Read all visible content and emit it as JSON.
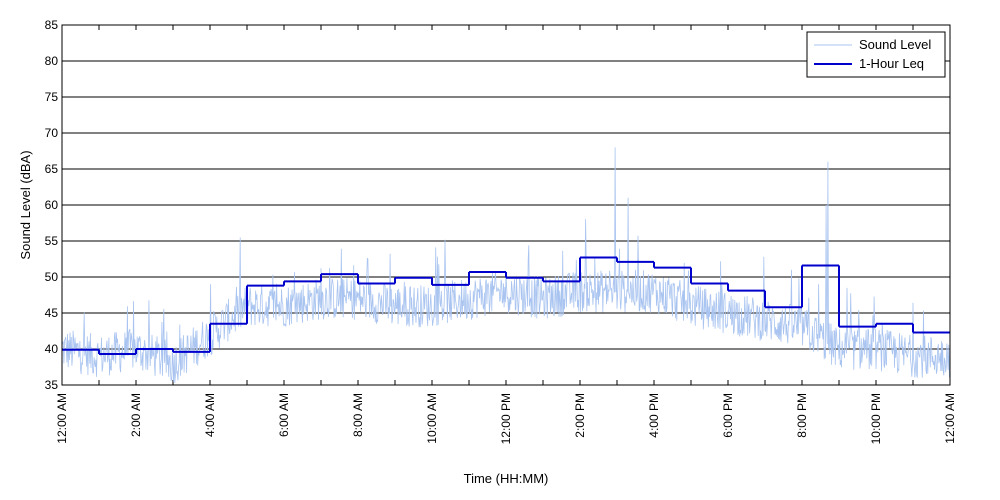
{
  "chart_data": {
    "type": "line",
    "title": "",
    "xlabel": "Time (HH:MM)",
    "ylabel": "Sound Level (dBA)",
    "xlim_hours": [
      0,
      24
    ],
    "ylim": [
      35,
      85
    ],
    "yticks": [
      35,
      40,
      45,
      50,
      55,
      60,
      65,
      70,
      75,
      80,
      85
    ],
    "xticks": [
      {
        "hour": 0,
        "label": "12:00 AM"
      },
      {
        "hour": 2,
        "label": "2:00 AM"
      },
      {
        "hour": 4,
        "label": "4:00 AM"
      },
      {
        "hour": 6,
        "label": "6:00 AM"
      },
      {
        "hour": 8,
        "label": "8:00 AM"
      },
      {
        "hour": 10,
        "label": "10:00 AM"
      },
      {
        "hour": 12,
        "label": "12:00 PM"
      },
      {
        "hour": 14,
        "label": "2:00 PM"
      },
      {
        "hour": 16,
        "label": "4:00 PM"
      },
      {
        "hour": 18,
        "label": "6:00 PM"
      },
      {
        "hour": 20,
        "label": "8:00 PM"
      },
      {
        "hour": 22,
        "label": "10:00 PM"
      },
      {
        "hour": 24,
        "label": "12:00 AM"
      }
    ],
    "grid": "horizontal",
    "legend_position": "top-right",
    "series": [
      {
        "name": "Sound Level",
        "color": "#a9c4f0",
        "style": "thin-line",
        "note_hourly_mean": [
          40,
          39,
          40,
          38,
          42,
          46,
          46,
          47,
          47,
          46,
          46,
          47,
          48,
          47,
          48,
          48,
          48,
          46,
          45,
          44,
          43,
          40,
          40,
          39
        ],
        "peaks": [
          {
            "hour": 14.95,
            "value": 68
          },
          {
            "hour": 20.7,
            "value": 66
          },
          {
            "hour": 20.65,
            "value": 60
          },
          {
            "hour": 15.3,
            "value": 61
          }
        ]
      },
      {
        "name": "1-Hour Leq",
        "color": "#0000cc",
        "style": "step",
        "hours": [
          0,
          1,
          2,
          3,
          4,
          5,
          6,
          7,
          8,
          9,
          10,
          11,
          12,
          13,
          14,
          15,
          16,
          17,
          18,
          19,
          20,
          21,
          22,
          23
        ],
        "values": [
          39.9,
          39.3,
          40.0,
          39.6,
          43.5,
          48.8,
          49.4,
          50.4,
          49.1,
          49.9,
          48.9,
          50.7,
          49.9,
          49.4,
          52.7,
          52.1,
          51.3,
          49.1,
          48.1,
          45.8,
          51.6,
          43.1,
          43.5,
          42.3
        ]
      }
    ]
  }
}
